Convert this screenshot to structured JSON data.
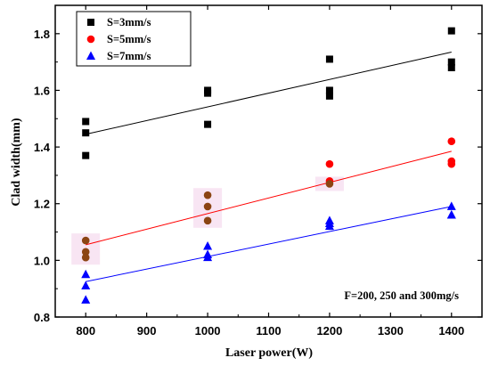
{
  "chart_data": {
    "type": "scatter",
    "xlabel": "Laser power(W)",
    "ylabel": "Clad width(mm)",
    "xlim": [
      750,
      1450
    ],
    "ylim": [
      0.8,
      1.9
    ],
    "xticks": [
      800,
      900,
      1000,
      1100,
      1200,
      1300,
      1400
    ],
    "yticks": [
      0.8,
      1.0,
      1.2,
      1.4,
      1.6,
      1.8
    ],
    "annotation": "F=200, 250 and 300mg/s",
    "legend_position": "top-left",
    "series": [
      {
        "name": "S=3mm/s",
        "marker": "square",
        "color": "#000000",
        "line_color": "#000000",
        "points": [
          {
            "x": 800,
            "y": 1.49
          },
          {
            "x": 800,
            "y": 1.45
          },
          {
            "x": 800,
            "y": 1.37
          },
          {
            "x": 1000,
            "y": 1.6
          },
          {
            "x": 1000,
            "y": 1.59
          },
          {
            "x": 1000,
            "y": 1.48
          },
          {
            "x": 1200,
            "y": 1.71
          },
          {
            "x": 1200,
            "y": 1.6
          },
          {
            "x": 1200,
            "y": 1.58
          },
          {
            "x": 1400,
            "y": 1.81
          },
          {
            "x": 1400,
            "y": 1.7
          },
          {
            "x": 1400,
            "y": 1.68
          }
        ],
        "fit": [
          {
            "x": 800,
            "y": 1.445
          },
          {
            "x": 1400,
            "y": 1.735
          }
        ]
      },
      {
        "name": "S=5mm/s",
        "marker": "circle",
        "color": "#ff0000",
        "line_color": "#ff0000",
        "points": [
          {
            "x": 800,
            "y": 1.07,
            "color": "#8b4513"
          },
          {
            "x": 800,
            "y": 1.03,
            "color": "#8b4513"
          },
          {
            "x": 800,
            "y": 1.01,
            "color": "#8b4513"
          },
          {
            "x": 1000,
            "y": 1.23,
            "color": "#8b4513"
          },
          {
            "x": 1000,
            "y": 1.19,
            "color": "#8b4513"
          },
          {
            "x": 1000,
            "y": 1.14,
            "color": "#8b4513"
          },
          {
            "x": 1200,
            "y": 1.34
          },
          {
            "x": 1200,
            "y": 1.28
          },
          {
            "x": 1200,
            "y": 1.27,
            "color": "#8b4513"
          },
          {
            "x": 1400,
            "y": 1.42
          },
          {
            "x": 1400,
            "y": 1.35
          },
          {
            "x": 1400,
            "y": 1.34
          }
        ],
        "fit": [
          {
            "x": 800,
            "y": 1.055
          },
          {
            "x": 1400,
            "y": 1.385
          }
        ]
      },
      {
        "name": "S=7mm/s",
        "marker": "triangle",
        "color": "#0000ff",
        "line_color": "#0000ff",
        "points": [
          {
            "x": 800,
            "y": 0.95
          },
          {
            "x": 800,
            "y": 0.91
          },
          {
            "x": 800,
            "y": 0.86
          },
          {
            "x": 1000,
            "y": 1.05
          },
          {
            "x": 1000,
            "y": 1.02
          },
          {
            "x": 1000,
            "y": 1.01
          },
          {
            "x": 1200,
            "y": 1.14
          },
          {
            "x": 1200,
            "y": 1.13
          },
          {
            "x": 1200,
            "y": 1.12
          },
          {
            "x": 1400,
            "y": 1.19
          },
          {
            "x": 1400,
            "y": 1.16
          },
          {
            "x": 1400,
            "y": 1.16
          }
        ],
        "fit": [
          {
            "x": 800,
            "y": 0.925
          },
          {
            "x": 1400,
            "y": 1.19
          }
        ]
      }
    ]
  }
}
